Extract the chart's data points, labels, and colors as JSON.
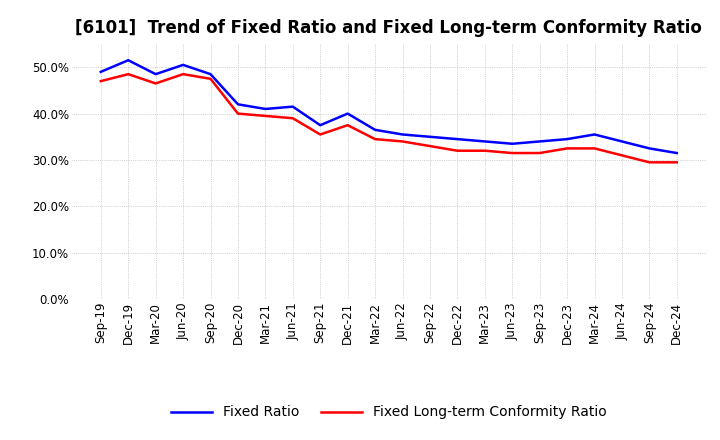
{
  "title": "[6101]  Trend of Fixed Ratio and Fixed Long-term Conformity Ratio",
  "x_labels": [
    "Sep-19",
    "Dec-19",
    "Mar-20",
    "Jun-20",
    "Sep-20",
    "Dec-20",
    "Mar-21",
    "Jun-21",
    "Sep-21",
    "Dec-21",
    "Mar-22",
    "Jun-22",
    "Sep-22",
    "Dec-22",
    "Mar-23",
    "Jun-23",
    "Sep-23",
    "Dec-23",
    "Mar-24",
    "Jun-24",
    "Sep-24",
    "Dec-24"
  ],
  "fixed_ratio": [
    49.0,
    51.5,
    48.5,
    50.5,
    48.5,
    42.0,
    41.0,
    41.5,
    37.5,
    40.0,
    36.5,
    35.5,
    35.0,
    34.5,
    34.0,
    33.5,
    34.0,
    34.5,
    35.5,
    34.0,
    32.5,
    31.5
  ],
  "fixed_lt_ratio": [
    47.0,
    48.5,
    46.5,
    48.5,
    47.5,
    40.0,
    39.5,
    39.0,
    35.5,
    37.5,
    34.5,
    34.0,
    33.0,
    32.0,
    32.0,
    31.5,
    31.5,
    32.5,
    32.5,
    31.0,
    29.5,
    29.5
  ],
  "fixed_ratio_color": "#0000FF",
  "fixed_lt_ratio_color": "#FF0000",
  "ylim": [
    0,
    55
  ],
  "yticks": [
    0.0,
    10.0,
    20.0,
    30.0,
    40.0,
    50.0
  ],
  "background_color": "#FFFFFF",
  "plot_bg_color": "#FFFFFF",
  "grid_color": "#999999",
  "legend_fixed_ratio": "Fixed Ratio",
  "legend_fixed_lt_ratio": "Fixed Long-term Conformity Ratio",
  "title_fontsize": 12,
  "tick_fontsize": 8.5,
  "legend_fontsize": 10,
  "line_width": 1.8
}
